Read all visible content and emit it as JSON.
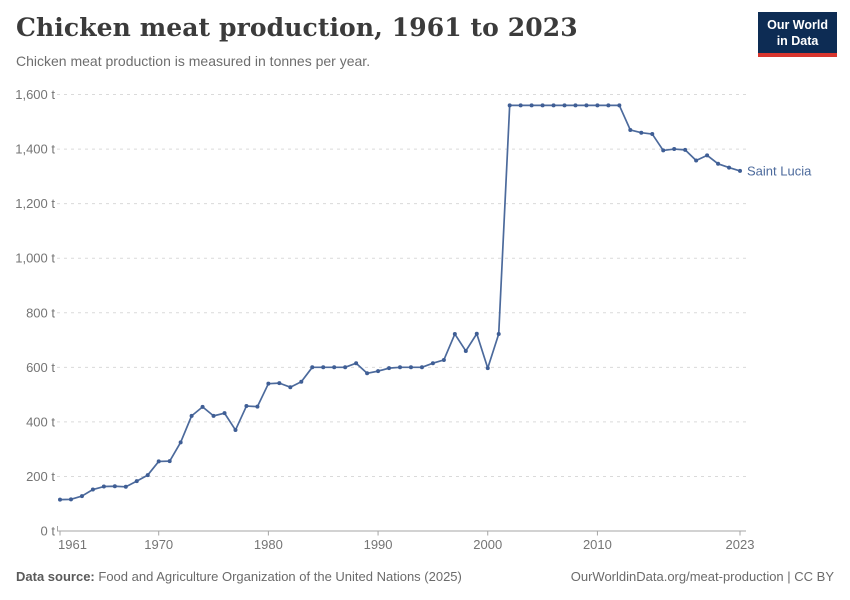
{
  "header": {
    "title": "Chicken meat production, 1961 to 2023",
    "subtitle": "Chicken meat production is measured in tonnes per year."
  },
  "logo": {
    "line1": "Our World",
    "line2": "in Data",
    "bg_color": "#0d2c54",
    "accent_color": "#d8352e"
  },
  "chart_data": {
    "type": "line",
    "title": "Chicken meat production, 1961 to 2023",
    "unit": "tonnes per year",
    "entity": "Saint Lucia",
    "line_color": "#4c6a9c",
    "marker_color": "#3f5e95",
    "grid": "horizontal-dashed",
    "legend_position": "end-of-line-label",
    "xlim": [
      1961,
      2023
    ],
    "ylim": [
      0,
      1600
    ],
    "ytick_values": [
      0,
      200,
      400,
      600,
      800,
      1000,
      1200,
      1400,
      1600
    ],
    "ytick_labels": [
      "0 t",
      "200 t",
      "400 t",
      "600 t",
      "800 t",
      "1,000 t",
      "1,200 t",
      "1,400 t",
      "1,600 t"
    ],
    "xtick_values": [
      1961,
      1970,
      1980,
      1990,
      2000,
      2010,
      2023
    ],
    "xtick_labels": [
      "1961",
      "1970",
      "1980",
      "1990",
      "2000",
      "2010",
      "2023"
    ],
    "x": [
      1961,
      1962,
      1963,
      1964,
      1965,
      1966,
      1967,
      1968,
      1969,
      1970,
      1971,
      1972,
      1973,
      1974,
      1975,
      1976,
      1977,
      1978,
      1979,
      1980,
      1981,
      1982,
      1983,
      1984,
      1985,
      1986,
      1987,
      1988,
      1989,
      1990,
      1991,
      1992,
      1993,
      1994,
      1995,
      1996,
      1997,
      1998,
      1999,
      2000,
      2001,
      2002,
      2003,
      2004,
      2005,
      2006,
      2007,
      2008,
      2009,
      2010,
      2011,
      2012,
      2013,
      2014,
      2015,
      2016,
      2017,
      2018,
      2019,
      2020,
      2021,
      2022,
      2023
    ],
    "series": [
      {
        "name": "Saint Lucia",
        "values": [
          115,
          116,
          128,
          152,
          163,
          164,
          162,
          183,
          205,
          255,
          256,
          325,
          422,
          455,
          422,
          432,
          370,
          458,
          456,
          540,
          542,
          527,
          547,
          600,
          600,
          600,
          600,
          615,
          578,
          586,
          597,
          600,
          600,
          600,
          615,
          627,
          722,
          660,
          723,
          597,
          722,
          1560,
          1560,
          1560,
          1560,
          1560,
          1560,
          1560,
          1560,
          1560,
          1560,
          1560,
          1470,
          1460,
          1455,
          1395,
          1400,
          1397,
          1358,
          1377,
          1346,
          1332,
          1320
        ]
      }
    ]
  },
  "footer": {
    "datasource_label": "Data source:",
    "datasource_text": "Food and Agriculture Organization of the United Nations (2025)",
    "credit": "OurWorldinData.org/meat-production | CC BY"
  }
}
